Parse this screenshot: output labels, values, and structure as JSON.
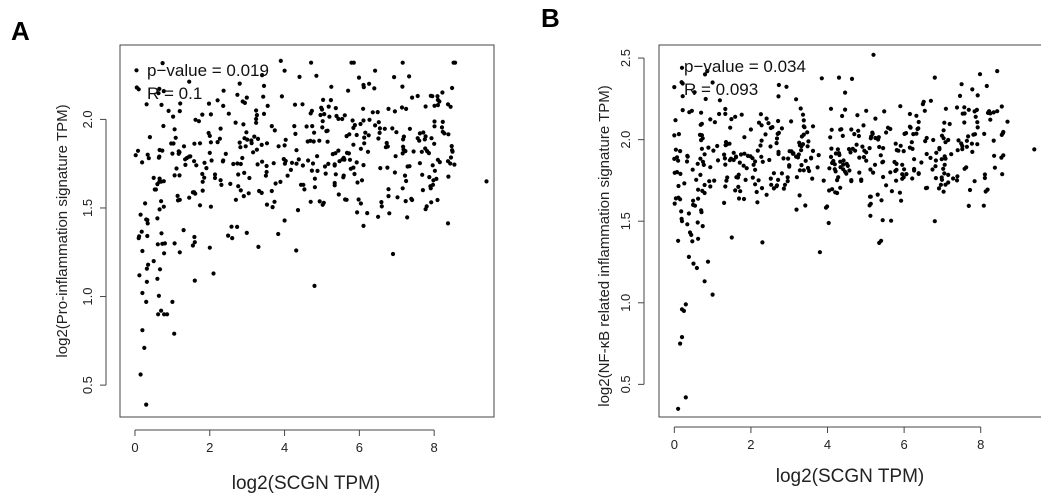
{
  "panels": [
    {
      "letter": "A"
    },
    {
      "letter": "B"
    }
  ],
  "chart_data": [
    {
      "type": "scatter",
      "panel": "A",
      "title": "",
      "xlabel": "log2(SCGN TPM)",
      "ylabel": "log2(Pro-inflammation signature TPM)",
      "annotations": [
        "p−value = 0.019",
        "R = 0.1"
      ],
      "xlim": [
        -0.4,
        9.6
      ],
      "ylim": [
        0.32,
        2.42
      ],
      "xticks": [
        0,
        2,
        4,
        6,
        8
      ],
      "yticks": [
        0.5,
        1.0,
        1.5,
        2.0
      ],
      "xtick_labels": [
        "0",
        "2",
        "4",
        "6",
        "8"
      ],
      "ytick_labels": [
        "0.5",
        "1.0",
        "1.5",
        "2.0"
      ],
      "grid": false,
      "seed": 17,
      "n_points": 420,
      "points": [
        [
          0.05,
          2.18
        ],
        [
          0.1,
          2.17
        ],
        [
          0.12,
          1.12
        ],
        [
          0.15,
          0.56
        ],
        [
          0.2,
          0.81
        ],
        [
          0.25,
          0.71
        ],
        [
          0.3,
          0.39
        ],
        [
          0.2,
          1.02
        ],
        [
          0.3,
          0.97
        ],
        [
          0.1,
          1.33
        ],
        [
          0.4,
          1.9
        ],
        [
          0.5,
          1.2
        ],
        [
          0.6,
          1.1
        ],
        [
          0.7,
          0.92
        ],
        [
          1.0,
          0.97
        ],
        [
          1.05,
          0.79
        ],
        [
          1.6,
          1.09
        ],
        [
          2.1,
          1.13
        ],
        [
          4.8,
          1.06
        ],
        [
          6.9,
          1.24
        ],
        [
          9.4,
          1.65
        ],
        [
          3.9,
          2.33
        ],
        [
          3.4,
          2.25
        ],
        [
          8.1,
          2.11
        ],
        [
          4.4,
          2.24
        ],
        [
          0.8,
          1.3
        ],
        [
          1.2,
          1.25
        ],
        [
          2.6,
          1.33
        ],
        [
          3.3,
          1.28
        ]
      ]
    },
    {
      "type": "scatter",
      "panel": "B",
      "title": "",
      "xlabel": "log2(SCGN TPM)",
      "ylabel": "log2(NF-κB related inflammation signature TPM)",
      "annotations": [
        "p−value = 0.034",
        "R = 0.093"
      ],
      "xlim": [
        -0.4,
        9.6
      ],
      "ylim": [
        0.3,
        2.58
      ],
      "xticks": [
        0,
        2,
        4,
        6,
        8
      ],
      "yticks": [
        0.5,
        1.0,
        1.5,
        2.0,
        2.5
      ],
      "xtick_labels": [
        "0",
        "2",
        "4",
        "6",
        "8"
      ],
      "ytick_labels": [
        "0.5",
        "1.0",
        "1.5",
        "2.0",
        "2.5"
      ],
      "grid": false,
      "seed": 29,
      "n_points": 460,
      "points": [
        [
          0.1,
          0.35
        ],
        [
          0.3,
          0.42
        ],
        [
          0.15,
          0.75
        ],
        [
          0.2,
          0.79
        ],
        [
          0.2,
          0.96
        ],
        [
          0.3,
          0.99
        ],
        [
          0.25,
          0.95
        ],
        [
          1.0,
          1.05
        ],
        [
          0.5,
          1.24
        ],
        [
          0.1,
          1.38
        ],
        [
          0.2,
          1.5
        ],
        [
          3.8,
          1.31
        ],
        [
          5.2,
          2.52
        ],
        [
          9.4,
          1.94
        ],
        [
          0.2,
          2.44
        ],
        [
          0.8,
          2.4
        ],
        [
          1.0,
          2.35
        ],
        [
          4.3,
          2.38
        ],
        [
          6.8,
          2.38
        ],
        [
          7.5,
          2.34
        ],
        [
          8.7,
          2.11
        ],
        [
          6.8,
          1.5
        ],
        [
          5.4,
          1.38
        ],
        [
          1.5,
          1.4
        ],
        [
          2.3,
          1.37
        ]
      ]
    }
  ]
}
